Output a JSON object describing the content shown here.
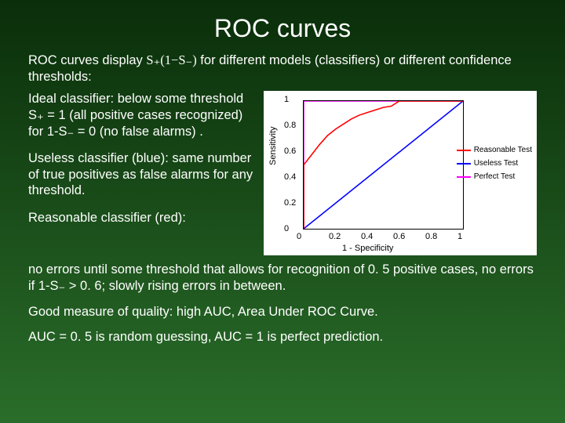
{
  "title": "ROC curves",
  "intro_pre": "ROC curves display ",
  "intro_expr": "S₊(1−S₋)",
  "intro_post": " for different models (classifiers) or different confidence thresholds:",
  "para_ideal": "Ideal classifier: below some threshold S₊ = 1 (all positive cases recognized) for 1-S₋ = 0 (no false alarms) .",
  "para_useless": "Useless classifier (blue): same number of true positives as false alarms for any threshold.",
  "para_reasonable": "Reasonable classifier (red):",
  "para_errors": "no errors until some threshold that allows for recognition of 0. 5 positive cases, no errors if 1-S₋ > 0. 6; slowly rising errors in between.",
  "para_auc1": "Good measure of quality: high AUC, Area Under ROC Curve.",
  "para_auc2": "AUC = 0. 5 is random guessing, AUC = 1 is perfect prediction.",
  "chart": {
    "type": "line",
    "background_color": "#ffffff",
    "plot_border_color": "#000000",
    "xlim": [
      0,
      1
    ],
    "ylim": [
      0,
      1
    ],
    "xticks": [
      0,
      0.2,
      0.4,
      0.6,
      0.8,
      1
    ],
    "yticks": [
      0,
      0.2,
      0.4,
      0.6,
      0.8,
      1
    ],
    "xlabel": "1 - Specificity",
    "ylabel": "Sensitivity",
    "tick_fontsize": 11,
    "label_fontsize": 11,
    "series": {
      "reasonable": {
        "color": "#ff0000",
        "label": "Reasonable Test",
        "points": [
          [
            0,
            0
          ],
          [
            0,
            0.5
          ],
          [
            0.05,
            0.58
          ],
          [
            0.1,
            0.66
          ],
          [
            0.15,
            0.73
          ],
          [
            0.2,
            0.78
          ],
          [
            0.25,
            0.82
          ],
          [
            0.3,
            0.86
          ],
          [
            0.35,
            0.89
          ],
          [
            0.4,
            0.91
          ],
          [
            0.45,
            0.93
          ],
          [
            0.5,
            0.95
          ],
          [
            0.55,
            0.96
          ],
          [
            0.6,
            1
          ],
          [
            1,
            1
          ]
        ]
      },
      "useless": {
        "color": "#0000ff",
        "label": "Useless Test",
        "points": [
          [
            0,
            0
          ],
          [
            1,
            1
          ]
        ]
      },
      "perfect": {
        "color": "#ff00ff",
        "label": "Perfect Test",
        "points": [
          [
            0,
            0
          ],
          [
            0,
            1
          ],
          [
            1,
            1
          ]
        ]
      }
    },
    "line_width": 1.6
  }
}
